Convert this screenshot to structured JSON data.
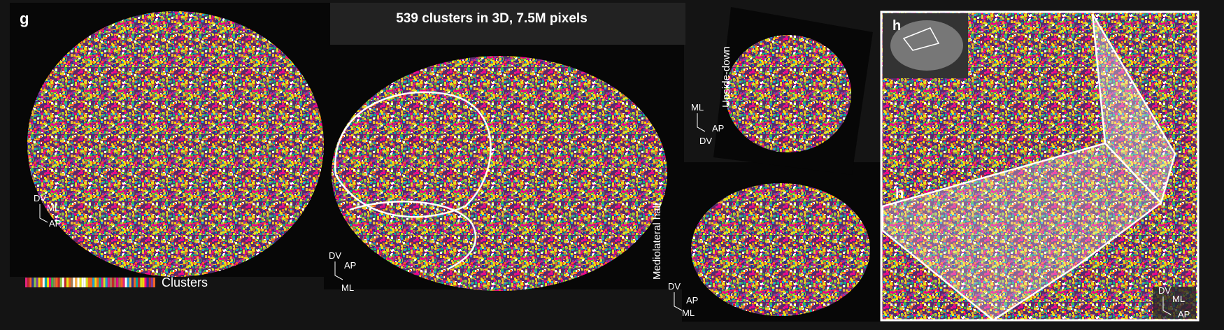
{
  "panel_g": {
    "label": "g",
    "title": "539 clusters in 3D, 7.5M pixels",
    "colorbar_label": "Clusters",
    "views": [
      {
        "axes": [
          "DV",
          "ML",
          "AP"
        ]
      },
      {
        "axes": [
          "DV",
          "AP",
          "ML"
        ]
      },
      {
        "caption": "Upside-down",
        "axes": [
          "ML",
          "AP",
          "DV"
        ]
      },
      {
        "caption": "Mediolateral half",
        "axes": [
          "DV",
          "AP",
          "ML"
        ]
      }
    ]
  },
  "panel_h": {
    "inset_label": "h",
    "region_label": "h",
    "axes": [
      "DV",
      "ML",
      "AP"
    ]
  }
}
